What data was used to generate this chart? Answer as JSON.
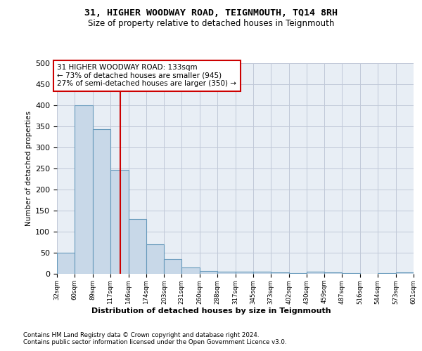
{
  "title1": "31, HIGHER WOODWAY ROAD, TEIGNMOUTH, TQ14 8RH",
  "title2": "Size of property relative to detached houses in Teignmouth",
  "xlabel": "Distribution of detached houses by size in Teignmouth",
  "ylabel": "Number of detached properties",
  "footer1": "Contains HM Land Registry data © Crown copyright and database right 2024.",
  "footer2": "Contains public sector information licensed under the Open Government Licence v3.0.",
  "annotation_line1": "31 HIGHER WOODWAY ROAD: 133sqm",
  "annotation_line2": "← 73% of detached houses are smaller (945)",
  "annotation_line3": "27% of semi-detached houses are larger (350) →",
  "bar_color": "#c8d8e8",
  "bar_edge_color": "#6699bb",
  "vline_color": "#cc0000",
  "annotation_box_color": "#cc0000",
  "grid_color": "#c0c8d8",
  "bin_edges": [
    32,
    60,
    89,
    117,
    146,
    174,
    203,
    231,
    260,
    288,
    317,
    345,
    373,
    402,
    430,
    459,
    487,
    516,
    544,
    573,
    601
  ],
  "bar_heights": [
    50,
    400,
    343,
    247,
    130,
    70,
    35,
    15,
    7,
    5,
    5,
    5,
    3,
    1,
    5,
    3,
    1,
    0,
    1,
    3
  ],
  "property_size": 133,
  "ylim": [
    0,
    500
  ],
  "yticks": [
    0,
    50,
    100,
    150,
    200,
    250,
    300,
    350,
    400,
    450,
    500
  ],
  "background_color": "#ffffff",
  "plot_bg_color": "#e8eef5"
}
